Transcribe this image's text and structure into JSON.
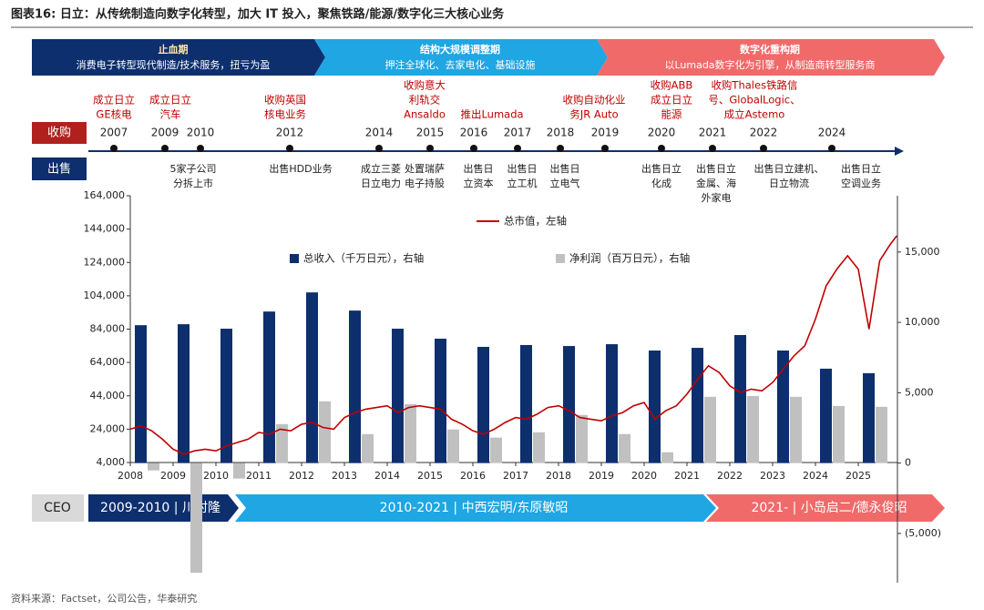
{
  "title": "图表16:  日立：从传统制造向数字化转型，加大 IT 投入，聚焦铁路/能源/数字化三大核心业务",
  "phases": [
    {
      "title": "止血期",
      "subtitle": "消费电子转型现代制造/技术服务，扭亏为盈"
    },
    {
      "title": "结构大规模调整期",
      "subtitle": "押注全球化、去家电化、基础设施"
    },
    {
      "title": "数字化重构期",
      "subtitle": "以Lumada数字化为引擎，从制造商转型服务商"
    }
  ],
  "timeline": {
    "acquire_label": "收购",
    "sell_label": "出售",
    "years": [
      "2007",
      "2009",
      "2010",
      "2012",
      "2014",
      "2015",
      "2016",
      "2017",
      "2018",
      "2019",
      "2020",
      "2021",
      "2022",
      "2024"
    ],
    "acquisitions": [
      {
        "lines": [
          "成立日立",
          "GE核电"
        ]
      },
      {
        "lines": [
          "成立日立",
          "汽车"
        ]
      },
      {
        "lines": [
          "收购英国",
          "核电业务"
        ]
      },
      {
        "lines": [
          "收购意大",
          "利轨交",
          "Ansaldo"
        ]
      },
      {
        "lines": [
          "推出Lumada"
        ]
      },
      {
        "lines": [
          "收购自动化业",
          "务JR Auto"
        ]
      },
      {
        "lines": [
          "收购ABB",
          "成立日立",
          "能源"
        ]
      },
      {
        "lines": [
          "收购Thales铁路信",
          "号、GlobalLogic、",
          "成立Astemo"
        ]
      }
    ],
    "sales": [
      {
        "lines": [
          "5家子公司",
          "分拆上市"
        ]
      },
      {
        "lines": [
          "出售HDD业务"
        ]
      },
      {
        "lines": [
          "成立三菱",
          "日立电力"
        ]
      },
      {
        "lines": [
          "处置瑞萨",
          "电子持股"
        ]
      },
      {
        "lines": [
          "出售日",
          "立资本"
        ]
      },
      {
        "lines": [
          "出售日",
          "立工机"
        ]
      },
      {
        "lines": [
          "出售日",
          "立电气"
        ]
      },
      {
        "lines": [
          "出售日立",
          "化成"
        ]
      },
      {
        "lines": [
          "出售日立",
          "金属、海",
          "外家电"
        ]
      },
      {
        "lines": [
          "出售日立建机、",
          "日立物流"
        ]
      },
      {
        "lines": [
          "出售日立",
          "空调业务"
        ]
      }
    ]
  },
  "chart_data": {
    "type": "bar",
    "categories": [
      "2008",
      "2009",
      "2010",
      "2011",
      "2012",
      "2013",
      "2014",
      "2015",
      "2016",
      "2017",
      "2018",
      "2019",
      "2020",
      "2021",
      "2022",
      "2023",
      "2024",
      "2025"
    ],
    "ylim": [
      4000,
      164000
    ],
    "yticks": [
      {
        "value": 4000,
        "label": "4,000"
      },
      {
        "value": 24000,
        "label": "24,000"
      },
      {
        "value": 44000,
        "label": "44,000"
      },
      {
        "value": 64000,
        "label": "64,000"
      },
      {
        "value": 84000,
        "label": "84,000"
      },
      {
        "value": 104000,
        "label": "104,000"
      },
      {
        "value": 124000,
        "label": "124,000"
      },
      {
        "value": 144000,
        "label": "144,000"
      },
      {
        "value": 164000,
        "label": "164,000"
      }
    ],
    "y2lim": [
      -8500,
      19000
    ],
    "y2ticks": [
      {
        "value": 15000,
        "label": "15,000"
      },
      {
        "value": 10000,
        "label": "10,000"
      },
      {
        "value": 5000,
        "label": "5,000"
      },
      0,
      {
        "value": -5000,
        "label": "(5,000)"
      }
    ],
    "series": [
      {
        "name": "总收入（千万日元），右轴",
        "type": "bar",
        "axis": "y2",
        "color": "#0d2f6e",
        "values": [
          9800,
          9870,
          9550,
          10770,
          12130,
          10840,
          9550,
          8840,
          8260,
          8390,
          8320,
          8450,
          8000,
          8190,
          9100,
          8000,
          6710,
          6390
        ]
      },
      {
        "name": "净利润（百万日元），右轴",
        "type": "bar",
        "axis": "y2",
        "color": "#c0c0c0",
        "values": [
          -520,
          -7800,
          -1100,
          2770,
          4390,
          2060,
          4190,
          2390,
          1810,
          2190,
          3420,
          2060,
          770,
          4710,
          4770,
          4710,
          4060,
          4000
        ]
      },
      {
        "name": "总市值，左轴",
        "type": "line",
        "axis": "y",
        "color": "#c00000",
        "x": [
          2008,
          2008.25,
          2008.5,
          2008.75,
          2009,
          2009.25,
          2009.5,
          2009.75,
          2010,
          2010.25,
          2010.5,
          2010.75,
          2011,
          2011.25,
          2011.5,
          2011.75,
          2012,
          2012.25,
          2012.5,
          2012.75,
          2013,
          2013.25,
          2013.5,
          2013.75,
          2014,
          2014.25,
          2014.5,
          2014.75,
          2015,
          2015.25,
          2015.5,
          2015.75,
          2016,
          2016.25,
          2016.5,
          2016.75,
          2017,
          2017.25,
          2017.5,
          2017.75,
          2018,
          2018.25,
          2018.5,
          2018.75,
          2019,
          2019.25,
          2019.5,
          2019.75,
          2020,
          2020.25,
          2020.5,
          2020.75,
          2021,
          2021.25,
          2021.5,
          2021.75,
          2022,
          2022.25,
          2022.5,
          2022.75,
          2023,
          2023.25,
          2023.5,
          2023.75,
          2024,
          2024.25,
          2024.5,
          2024.75,
          2025,
          2025.25,
          2025.5,
          2025.75,
          2025.9
        ],
        "values": [
          24000,
          26000,
          23000,
          18000,
          12000,
          9000,
          11000,
          12000,
          11000,
          14000,
          16000,
          18000,
          22000,
          21000,
          24000,
          23000,
          27000,
          28000,
          25000,
          24000,
          31000,
          34000,
          36000,
          37000,
          38000,
          34000,
          37000,
          38000,
          37000,
          36000,
          30000,
          27000,
          23000,
          21000,
          24000,
          28000,
          31000,
          30000,
          33000,
          37000,
          38000,
          35000,
          31000,
          30000,
          29000,
          32000,
          34000,
          38000,
          40000,
          30000,
          35000,
          38000,
          45000,
          54000,
          62000,
          58000,
          50000,
          46000,
          48000,
          47000,
          52000,
          60000,
          68000,
          74000,
          90000,
          110000,
          120000,
          128000,
          120000,
          84000,
          125000,
          135000,
          140000
        ]
      }
    ]
  },
  "ceo": {
    "label": "CEO",
    "terms": [
      "2009-2010 | 川村隆",
      "2010-2021 | 中西宏明/东原敏昭",
      "2021- | 小岛启二/德永俊昭"
    ]
  },
  "source": "资料来源：Factset，公司公告，华泰研究"
}
